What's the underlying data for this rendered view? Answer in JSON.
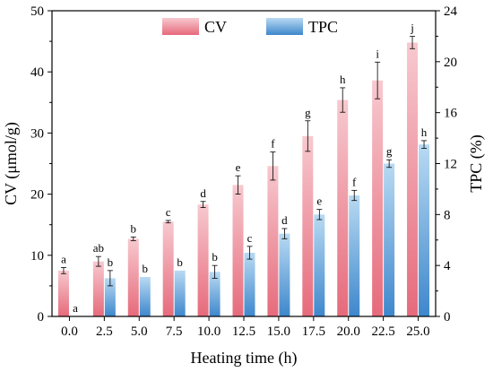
{
  "chart_data": {
    "type": "bar",
    "xlabel": "Heating time (h)",
    "ylabel": "CV (μmol/g)",
    "y2label": "TPC (%)",
    "categories": [
      "0.0",
      "2.5",
      "5.0",
      "7.5",
      "10.0",
      "12.5",
      "15.0",
      "17.5",
      "20.0",
      "22.5",
      "25.0"
    ],
    "ylim": [
      0,
      50
    ],
    "y2lim": [
      0,
      24
    ],
    "yticks": [
      "0",
      "10",
      "20",
      "30",
      "40",
      "50"
    ],
    "y2ticks": [
      "0",
      "4",
      "8",
      "12",
      "16",
      "20",
      "24"
    ],
    "legend_position": "top-center",
    "series": [
      {
        "name": "CV",
        "axis": "left",
        "color": "#e8707f",
        "values": [
          7.5,
          9.0,
          12.7,
          15.5,
          18.3,
          21.5,
          24.6,
          29.5,
          35.4,
          38.6,
          44.8
        ],
        "errors": [
          0.5,
          0.8,
          0.3,
          0.2,
          0.5,
          1.5,
          2.3,
          2.5,
          2.0,
          3.0,
          1.0
        ],
        "letters": [
          "a",
          "ab",
          "b",
          "c",
          "d",
          "e",
          "f",
          "g",
          "h",
          "i",
          "j"
        ]
      },
      {
        "name": "TPC",
        "axis": "right",
        "color": "#4f93d1",
        "values": [
          0,
          3.0,
          3.1,
          3.6,
          3.5,
          5.0,
          6.5,
          8.0,
          9.5,
          12.0,
          13.5
        ],
        "errors": [
          0,
          0.6,
          0,
          0,
          0.5,
          0.5,
          0.4,
          0.4,
          0.4,
          0.3,
          0.3
        ],
        "letters": [
          "a",
          "b",
          "b",
          "b",
          "b",
          "c",
          "d",
          "e",
          "f",
          "g",
          "h"
        ]
      }
    ]
  }
}
